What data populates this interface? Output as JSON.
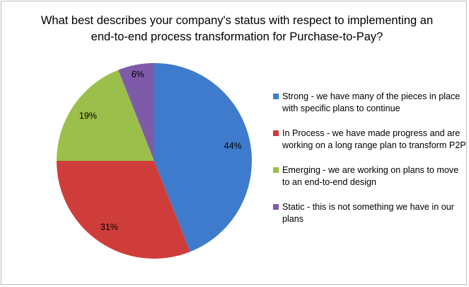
{
  "chart_data": {
    "type": "pie",
    "title": "What best describes your company's status with respect to implementing an end-to-end process transformation for Purchase-to-Pay?",
    "start_angle": "12 o'clock, clockwise",
    "legend_position": "right",
    "slices": [
      {
        "label": "Strong - we have many of the pieces in place with specific plans to continue",
        "value": 44,
        "data_label": "44%",
        "color": "#3f7bcc"
      },
      {
        "label": "In Process - we have made progress and are working on a long range plan to transform P2P",
        "value": 31,
        "data_label": "31%",
        "color": "#cf3d3b"
      },
      {
        "label": "Emerging - we are working on plans to move to an end-to-end design",
        "value": 19,
        "data_label": "19%",
        "color": "#9bbf4a"
      },
      {
        "label": "Static - this is not something we have in our plans",
        "value": 6,
        "data_label": "6%",
        "color": "#7e5ba8"
      }
    ]
  }
}
